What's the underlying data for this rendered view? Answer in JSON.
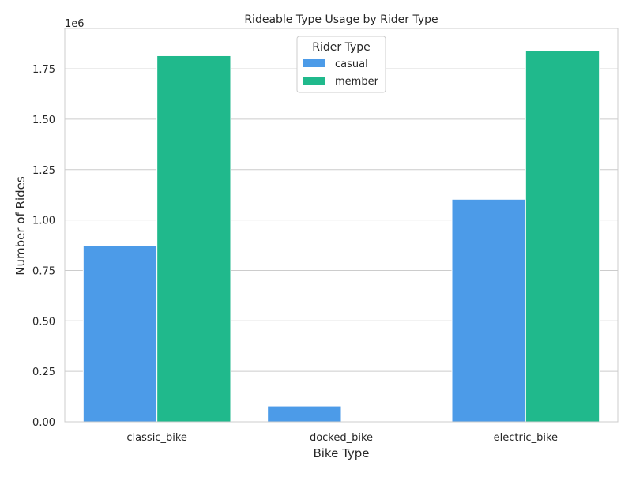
{
  "chart_data": {
    "type": "bar",
    "title": "Rideable Type Usage by Rider Type",
    "xlabel": "Bike Type",
    "ylabel": "Number of Rides",
    "y_offset_label": "1e6",
    "categories": [
      "classic_bike",
      "docked_bike",
      "electric_bike"
    ],
    "series": [
      {
        "name": "casual",
        "color": "#4c9be8",
        "values": [
          875000,
          78000,
          1103000
        ]
      },
      {
        "name": "member",
        "color": "#20b98c",
        "values": [
          1815000,
          0,
          1840000
        ]
      }
    ],
    "ylim": [
      0,
      1950000
    ],
    "yticks": [
      0,
      250000,
      500000,
      750000,
      1000000,
      1250000,
      1500000,
      1750000
    ],
    "ytick_labels": [
      "0.00",
      "0.25",
      "0.50",
      "0.75",
      "1.00",
      "1.25",
      "1.50",
      "1.75"
    ],
    "grid": "horizontal",
    "legend": {
      "title": "Rider Type",
      "position": "top-center"
    }
  }
}
